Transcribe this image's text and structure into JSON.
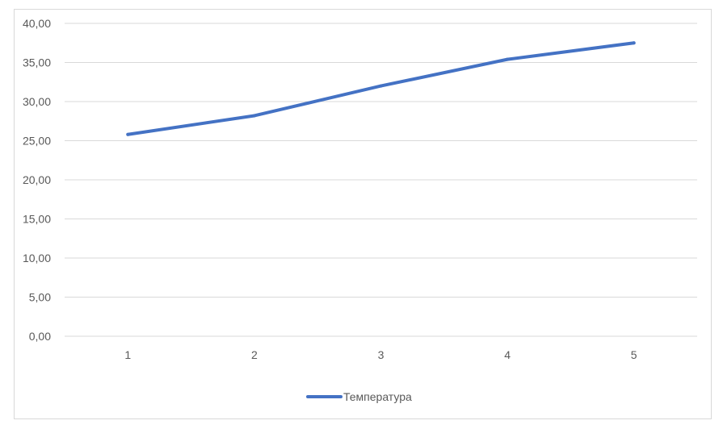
{
  "chart_data": {
    "type": "line",
    "title": "",
    "xlabel": "",
    "ylabel": "",
    "categories": [
      "1",
      "2",
      "3",
      "4",
      "5"
    ],
    "series": [
      {
        "name": "Температура",
        "values": [
          25.8,
          28.2,
          32.0,
          35.4,
          37.5
        ],
        "color": "#4472c4"
      }
    ],
    "ylim": [
      0,
      40
    ],
    "y_ticks": [
      "0,00",
      "5,00",
      "10,00",
      "15,00",
      "20,00",
      "25,00",
      "30,00",
      "35,00",
      "40,00"
    ],
    "y_tick_values": [
      0,
      5,
      10,
      15,
      20,
      25,
      30,
      35,
      40
    ],
    "grid": true,
    "gridline_color": "#d9d9d9",
    "legend_position": "bottom"
  }
}
